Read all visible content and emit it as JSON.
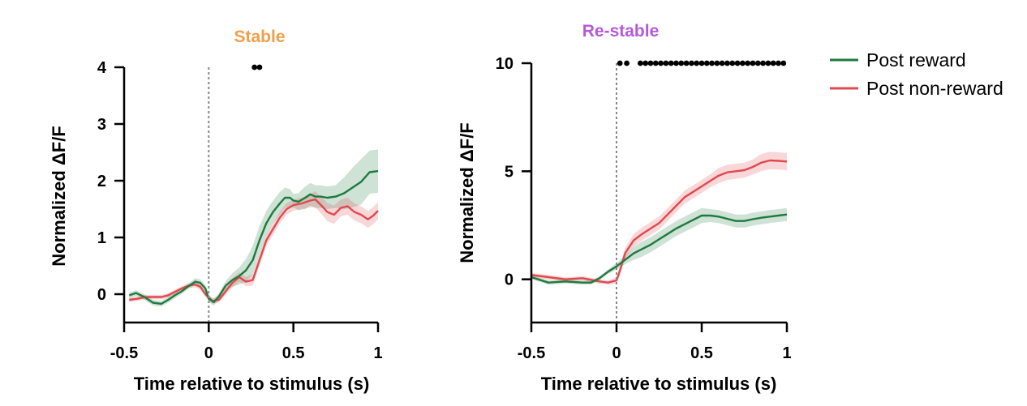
{
  "legend": [
    {
      "label": "Post reward",
      "color": "#1f7a3e"
    },
    {
      "label": "Post non-reward",
      "color": "#e0494e"
    }
  ],
  "chart_data": [
    {
      "type": "line",
      "title": "Stable",
      "title_color": "#f0a04a",
      "xlabel": "Time relative to stimulus (s)",
      "ylabel": "Normalized ΔF/F",
      "xlim": [
        -0.5,
        1
      ],
      "ylim": [
        -0.5,
        4
      ],
      "xticks": [
        -0.5,
        0,
        0.5,
        1
      ],
      "xtick_labels": [
        "-0.5",
        "0",
        "0.5",
        "1"
      ],
      "yticks": [
        0,
        1,
        2,
        3,
        4
      ],
      "ytick_labels": [
        "0",
        "1",
        "2",
        "3",
        "4"
      ],
      "stimulus_line_x": 0,
      "significance_x": [
        0.27,
        0.3
      ],
      "significance_y": 4,
      "series": [
        {
          "name": "Post reward",
          "color": "#1f7a3e",
          "x": [
            -0.47,
            -0.43,
            -0.38,
            -0.33,
            -0.28,
            -0.24,
            -0.2,
            -0.16,
            -0.12,
            -0.08,
            -0.05,
            -0.02,
            0,
            0.03,
            0.06,
            0.1,
            0.14,
            0.18,
            0.22,
            0.26,
            0.3,
            0.34,
            0.38,
            0.42,
            0.45,
            0.48,
            0.5,
            0.53,
            0.57,
            0.6,
            0.63,
            0.66,
            0.7,
            0.75,
            0.8,
            0.85,
            0.9,
            0.95,
            1.0
          ],
          "values": [
            -0.02,
            0.02,
            -0.05,
            -0.15,
            -0.17,
            -0.1,
            -0.02,
            0.05,
            0.14,
            0.22,
            0.2,
            0.1,
            -0.08,
            -0.14,
            -0.04,
            0.15,
            0.25,
            0.32,
            0.42,
            0.6,
            0.95,
            1.25,
            1.45,
            1.6,
            1.7,
            1.7,
            1.65,
            1.63,
            1.7,
            1.76,
            1.72,
            1.72,
            1.7,
            1.72,
            1.78,
            1.88,
            1.98,
            2.15,
            2.17
          ],
          "error": [
            0.05,
            0.05,
            0.05,
            0.05,
            0.05,
            0.05,
            0.05,
            0.05,
            0.05,
            0.06,
            0.06,
            0.06,
            0.06,
            0.06,
            0.06,
            0.08,
            0.12,
            0.15,
            0.2,
            0.25,
            0.25,
            0.22,
            0.2,
            0.2,
            0.18,
            0.15,
            0.12,
            0.15,
            0.2,
            0.2,
            0.2,
            0.2,
            0.2,
            0.2,
            0.28,
            0.35,
            0.4,
            0.38,
            0.38
          ]
        },
        {
          "name": "Post non-reward",
          "color": "#e0494e",
          "x": [
            -0.47,
            -0.42,
            -0.37,
            -0.32,
            -0.28,
            -0.24,
            -0.2,
            -0.16,
            -0.12,
            -0.08,
            -0.05,
            -0.02,
            0.02,
            0.06,
            0.1,
            0.14,
            0.18,
            0.22,
            0.26,
            0.3,
            0.34,
            0.38,
            0.42,
            0.46,
            0.5,
            0.55,
            0.6,
            0.63,
            0.67,
            0.7,
            0.74,
            0.78,
            0.82,
            0.86,
            0.9,
            0.94,
            0.97,
            1.0
          ],
          "values": [
            -0.1,
            -0.08,
            -0.05,
            -0.05,
            -0.05,
            -0.02,
            0.04,
            0.1,
            0.15,
            0.17,
            0.13,
            0.0,
            -0.12,
            -0.1,
            0.05,
            0.2,
            0.3,
            0.22,
            0.25,
            0.6,
            0.95,
            1.15,
            1.35,
            1.5,
            1.57,
            1.6,
            1.65,
            1.67,
            1.55,
            1.45,
            1.4,
            1.52,
            1.55,
            1.45,
            1.4,
            1.32,
            1.38,
            1.47
          ],
          "error": [
            0.04,
            0.04,
            0.04,
            0.04,
            0.04,
            0.04,
            0.04,
            0.04,
            0.04,
            0.05,
            0.05,
            0.05,
            0.05,
            0.05,
            0.06,
            0.08,
            0.08,
            0.08,
            0.1,
            0.1,
            0.1,
            0.1,
            0.1,
            0.1,
            0.1,
            0.1,
            0.12,
            0.14,
            0.15,
            0.16,
            0.16,
            0.15,
            0.15,
            0.15,
            0.15,
            0.15,
            0.15,
            0.15
          ]
        }
      ]
    },
    {
      "type": "line",
      "title": "Re-stable",
      "title_color": "#b45ad8",
      "xlabel": "Time relative to stimulus (s)",
      "ylabel": "Normalized ΔF/F",
      "xlim": [
        -0.5,
        1
      ],
      "ylim": [
        -2,
        10
      ],
      "xticks": [
        -0.5,
        0,
        0.5,
        1
      ],
      "xtick_labels": [
        "-0.5",
        "0",
        "0.5",
        "1"
      ],
      "yticks": [
        0,
        5,
        10
      ],
      "ytick_labels": [
        "0",
        "5",
        "10"
      ],
      "stimulus_line_x": 0,
      "significance_x": [
        0.02,
        0.06,
        0.14,
        0.17,
        0.2,
        0.23,
        0.26,
        0.29,
        0.32,
        0.35,
        0.38,
        0.41,
        0.44,
        0.47,
        0.5,
        0.53,
        0.56,
        0.59,
        0.62,
        0.65,
        0.68,
        0.71,
        0.74,
        0.77,
        0.8,
        0.83,
        0.86,
        0.89,
        0.92,
        0.95,
        0.98
      ],
      "significance_y": 10,
      "series": [
        {
          "name": "Post reward",
          "color": "#1f7a3e",
          "x": [
            -0.5,
            -0.4,
            -0.3,
            -0.2,
            -0.15,
            -0.1,
            -0.05,
            0.0,
            0.05,
            0.1,
            0.15,
            0.2,
            0.25,
            0.3,
            0.35,
            0.4,
            0.45,
            0.5,
            0.55,
            0.6,
            0.65,
            0.7,
            0.75,
            0.8,
            0.85,
            0.9,
            0.95,
            1.0
          ],
          "values": [
            0.1,
            -0.15,
            -0.1,
            -0.15,
            -0.15,
            0.05,
            0.35,
            0.6,
            0.9,
            1.2,
            1.4,
            1.6,
            1.85,
            2.1,
            2.35,
            2.55,
            2.75,
            2.95,
            2.95,
            2.9,
            2.8,
            2.7,
            2.7,
            2.78,
            2.85,
            2.9,
            2.95,
            3.0
          ],
          "error": [
            0.1,
            0.1,
            0.1,
            0.1,
            0.1,
            0.1,
            0.1,
            0.15,
            0.2,
            0.3,
            0.35,
            0.35,
            0.35,
            0.35,
            0.35,
            0.35,
            0.35,
            0.35,
            0.3,
            0.3,
            0.3,
            0.3,
            0.3,
            0.3,
            0.3,
            0.3,
            0.3,
            0.3
          ]
        },
        {
          "name": "Post non-reward",
          "color": "#e0494e",
          "x": [
            -0.5,
            -0.4,
            -0.3,
            -0.2,
            -0.1,
            -0.05,
            0.0,
            0.02,
            0.05,
            0.1,
            0.15,
            0.2,
            0.25,
            0.3,
            0.35,
            0.4,
            0.45,
            0.5,
            0.55,
            0.6,
            0.65,
            0.7,
            0.75,
            0.8,
            0.85,
            0.9,
            0.95,
            1.0
          ],
          "values": [
            0.2,
            0.1,
            0.0,
            0.05,
            -0.1,
            -0.15,
            -0.05,
            0.4,
            1.2,
            1.8,
            2.1,
            2.35,
            2.6,
            3.0,
            3.4,
            3.8,
            4.05,
            4.3,
            4.55,
            4.8,
            4.95,
            5.0,
            5.05,
            5.2,
            5.4,
            5.5,
            5.48,
            5.45
          ],
          "error": [
            0.1,
            0.1,
            0.1,
            0.1,
            0.1,
            0.1,
            0.15,
            0.2,
            0.25,
            0.3,
            0.3,
            0.3,
            0.3,
            0.3,
            0.3,
            0.3,
            0.3,
            0.3,
            0.3,
            0.35,
            0.35,
            0.35,
            0.35,
            0.35,
            0.4,
            0.4,
            0.4,
            0.4
          ]
        }
      ]
    }
  ]
}
